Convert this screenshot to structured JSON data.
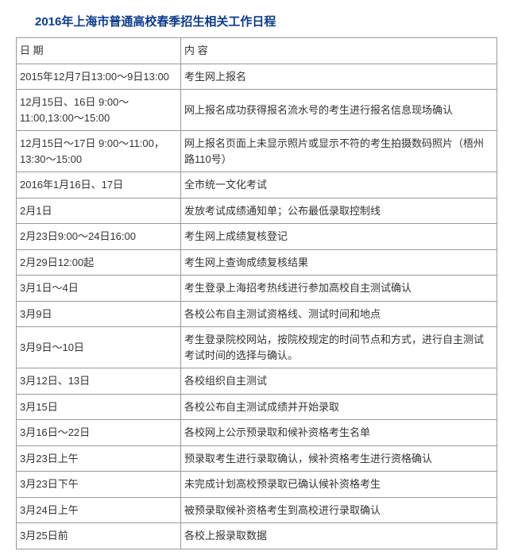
{
  "title": "2016年上海市普通高校春季招生相关工作日程",
  "table": {
    "header": {
      "date": "日 期",
      "content": "内 容"
    },
    "rows": [
      {
        "date": "2015年12月7日13:00～9日13:00",
        "content": "考生网上报名"
      },
      {
        "date": "12月15日、16日 9:00～11:00,13:00～15:00",
        "content": "网上报名成功获得报名流水号的考生进行报名信息现场确认"
      },
      {
        "date": "12月15日～17日 9:00～11:00，13:30～15:00",
        "content": "网上报名页面上未显示照片或显示不符的考生拍摄数码照片（梧州路110号）"
      },
      {
        "date": "2016年1月16日、17日",
        "content": "全市统一文化考试"
      },
      {
        "date": "2月1日",
        "content": "发放考试成绩通知单；公布最低录取控制线"
      },
      {
        "date": "2月23日9:00～24日16:00",
        "content": "考生网上成绩复核登记"
      },
      {
        "date": "2月29日12:00起",
        "content": "考生网上查询成绩复核结果"
      },
      {
        "date": "3月1日～4日",
        "content": "考生登录上海招考热线进行参加高校自主测试确认"
      },
      {
        "date": "3月9日",
        "content": "各校公布自主测试资格线、测试时间和地点"
      },
      {
        "date": "3月9日～10日",
        "content": "考生登录院校网站，按院校规定的时间节点和方式，进行自主测试考试时间的选择与确认。"
      },
      {
        "date": "3月12日、13日",
        "content": "各校组织自主测试"
      },
      {
        "date": "3月15日",
        "content": "各校公布自主测试成绩并开始录取"
      },
      {
        "date": "3月16日～22日",
        "content": "各校网上公示预录取和候补资格考生名单"
      },
      {
        "date": "3月23日上午",
        "content": "预录取考生进行录取确认，候补资格考生进行资格确认"
      },
      {
        "date": "3月23日下午",
        "content": "未完成计划高校预录取已确认候补资格考生"
      },
      {
        "date": "3月24日上午",
        "content": "被预录取候补资格考生到高校进行录取确认"
      },
      {
        "date": "3月25日前",
        "content": "各校上报录取数据"
      }
    ]
  }
}
